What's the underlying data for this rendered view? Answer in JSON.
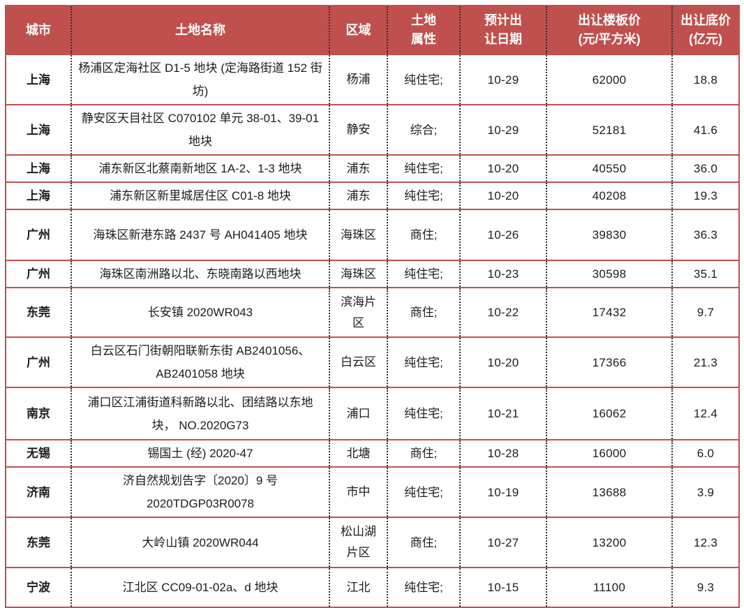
{
  "colors": {
    "header_bg": "#c0504d",
    "rule_red": "#c0504d",
    "grid_dotted": "#303030",
    "header_text": "#ffffff",
    "body_text": "#1c1c1c"
  },
  "headers_display": [
    "城市",
    "土地名称",
    "区域",
    "土地\n属性",
    "预计出\n让日期",
    "出让楼板价\n(元/平方米)",
    "出让底价\n(亿元)"
  ],
  "chart_data": {
    "type": "table",
    "columns": [
      "城市",
      "土地名称",
      "区域",
      "土地属性",
      "预计出让日期",
      "出让楼板价(元/平方米)",
      "出让底价(亿元)"
    ],
    "rows": [
      [
        "上海",
        "杨浦区定海社区 D1-5 地块 (定海路街道 152 街坊)",
        "杨浦",
        "纯住宅;",
        "10-29",
        "62000",
        "18.8"
      ],
      [
        "上海",
        "静安区天目社区 C070102 单元 38-01、39-01 地块",
        "静安",
        "综合;",
        "10-29",
        "52181",
        "41.6"
      ],
      [
        "上海",
        "浦东新区北蔡南新地区 1A-2、1-3 地块",
        "浦东",
        "纯住宅;",
        "10-20",
        "40550",
        "36.0"
      ],
      [
        "上海",
        "浦东新区新里城居住区 C01-8 地块",
        "浦东",
        "纯住宅;",
        "10-20",
        "40208",
        "19.3"
      ],
      [
        "广州",
        "海珠区新港东路 2437 号 AH041405 地块",
        "海珠区",
        "商住;",
        "10-26",
        "39830",
        "36.3"
      ],
      [
        "广州",
        "海珠区南洲路以北、东晓南路以西地块",
        "海珠区",
        "纯住宅;",
        "10-23",
        "30598",
        "35.1"
      ],
      [
        "东莞",
        "长安镇 2020WR043",
        "滨海片区",
        "商住;",
        "10-22",
        "17432",
        "9.7"
      ],
      [
        "广州",
        "白云区石门街朝阳联新东街 AB2401056、AB2401058 地块",
        "白云区",
        "纯住宅;",
        "10-20",
        "17366",
        "21.3"
      ],
      [
        "南京",
        "浦口区江浦街道科新路以北、团结路以东地块， NO.2020G73",
        "浦口",
        "纯住宅;",
        "10-21",
        "16062",
        "12.4"
      ],
      [
        "无锡",
        "锡国土 (经) 2020-47",
        "北塘",
        "商住;",
        "10-28",
        "16000",
        "6.0"
      ],
      [
        "济南",
        "济自然规划告字〔2020〕9 号 2020TDGP03R0078",
        "市中",
        "纯住宅;",
        "10-19",
        "13688",
        "3.9"
      ],
      [
        "东莞",
        "大岭山镇 2020WR044",
        "松山湖片区",
        "商住;",
        "10-27",
        "13200",
        "12.3"
      ],
      [
        "宁波",
        "江北区 CC09-01-02a、d 地块",
        "江北",
        "纯住宅;",
        "10-15",
        "11100",
        "9.3"
      ]
    ]
  }
}
